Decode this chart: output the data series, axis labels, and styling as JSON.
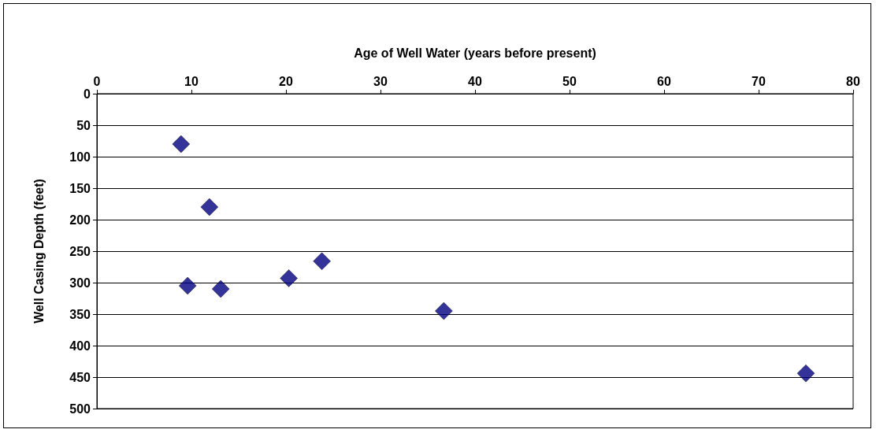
{
  "chart_data": {
    "type": "scatter",
    "xlabel": "Age of Well Water (years before present)",
    "ylabel": "Well Casing Depth (feet)",
    "x": [
      8.9,
      11.9,
      9.6,
      13.1,
      20.3,
      23.8,
      36.7,
      75.0
    ],
    "series": [
      {
        "color": "#000080",
        "values": [
          80,
          180,
          305,
          310,
          293,
          266,
          345,
          444
        ]
      }
    ],
    "xlim": [
      0,
      80
    ],
    "xticks": [
      0,
      10,
      20,
      30,
      40,
      50,
      60,
      70,
      80
    ],
    "ylim": [
      500,
      0
    ],
    "yticks": [
      0,
      50,
      100,
      150,
      200,
      250,
      300,
      350,
      400,
      450,
      500
    ],
    "grid": "y",
    "marker": "diamond"
  }
}
